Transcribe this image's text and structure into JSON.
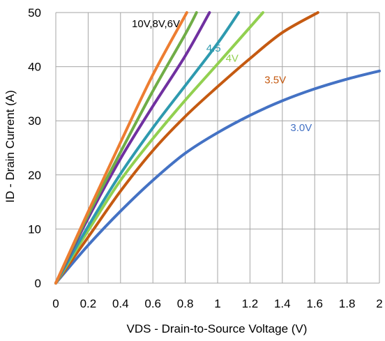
{
  "chart_data": {
    "type": "line",
    "title": "",
    "xlabel": "VDS - Drain-to-Source Voltage (V)",
    "ylabel": "ID - Drain Current (A)",
    "xlim": [
      0,
      2
    ],
    "ylim": [
      0,
      50
    ],
    "x_ticks": [
      0,
      0.2,
      0.4,
      0.6,
      0.8,
      1,
      1.2,
      1.4,
      1.6,
      1.8,
      2
    ],
    "x_tick_labels": [
      "0",
      "0.2",
      "0.4",
      "0.6",
      "0.8",
      "1",
      "1.2",
      "1.4",
      "1.6",
      "1.8",
      "2"
    ],
    "y_ticks": [
      0,
      10,
      20,
      30,
      40,
      50
    ],
    "y_tick_labels": [
      "0",
      "10",
      "20",
      "30",
      "40",
      "50"
    ],
    "grid": true,
    "legend": "none",
    "series": [
      {
        "name": "3.0V",
        "color": "#4472c4",
        "x": [
          0,
          0.2,
          0.4,
          0.6,
          0.8,
          1.0,
          1.2,
          1.4,
          1.6,
          1.8,
          2.0
        ],
        "y": [
          0,
          7,
          13.3,
          19,
          24,
          27.8,
          31,
          33.7,
          35.9,
          37.7,
          39.2
        ]
      },
      {
        "name": "3.5V",
        "color": "#c55a11",
        "x": [
          0,
          0.2,
          0.4,
          0.6,
          0.8,
          1.0,
          1.2,
          1.4,
          1.62
        ],
        "y": [
          0,
          8.5,
          17,
          24.5,
          30.8,
          36.3,
          41.5,
          46.3,
          50
        ]
      },
      {
        "name": "4V",
        "color": "#92d050",
        "x": [
          0,
          0.2,
          0.4,
          0.6,
          0.8,
          1.0,
          1.28
        ],
        "y": [
          0,
          9.7,
          19,
          26.7,
          33.8,
          40.5,
          50
        ]
      },
      {
        "name": "4.5",
        "color": "#2e9aaf",
        "x": [
          0,
          0.2,
          0.4,
          0.6,
          0.8,
          1.0,
          1.13
        ],
        "y": [
          0,
          10.5,
          20.2,
          28.7,
          36.5,
          44.3,
          50
        ]
      },
      {
        "name": "",
        "color": "#7030a0",
        "x": [
          0,
          0.2,
          0.4,
          0.6,
          0.8,
          0.95
        ],
        "y": [
          0,
          12,
          23,
          32.7,
          42,
          50
        ]
      },
      {
        "name": "",
        "color": "#70ad47",
        "x": [
          0,
          0.2,
          0.4,
          0.6,
          0.8,
          0.87
        ],
        "y": [
          0,
          12.6,
          24.2,
          35.5,
          46,
          50
        ]
      },
      {
        "name": "",
        "color": "#ed7d31",
        "x": [
          0,
          0.2,
          0.4,
          0.6,
          0.81
        ],
        "y": [
          0,
          13.2,
          26,
          38.5,
          50
        ]
      }
    ],
    "annotations": [
      {
        "text": "10V,8V,6V",
        "x": 0.47,
        "y": 47.3,
        "color": "#000000"
      },
      {
        "text": "4.5",
        "x": 0.93,
        "y": 42.8,
        "color": "#2e9aaf"
      },
      {
        "text": "4V",
        "x": 1.05,
        "y": 40.9,
        "color": "#92d050"
      },
      {
        "text": "3.5V",
        "x": 1.29,
        "y": 36.9,
        "color": "#c55a11"
      },
      {
        "text": "3.0V",
        "x": 1.45,
        "y": 28.1,
        "color": "#4472c4"
      }
    ]
  }
}
